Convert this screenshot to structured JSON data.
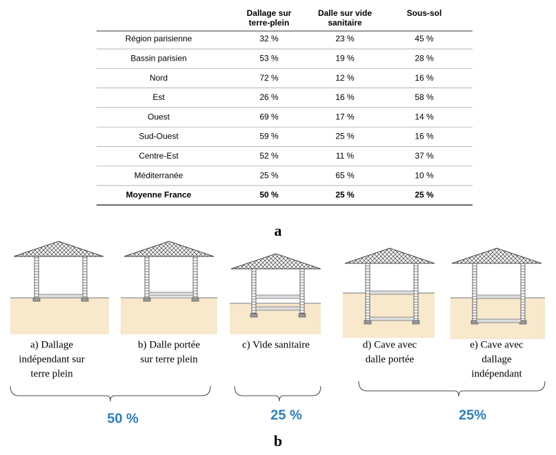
{
  "table": {
    "header": [
      [
        "Dallage sur",
        "terre-plein"
      ],
      [
        "Dalle sur vide",
        "sanitaire"
      ],
      [
        "Sous-sol"
      ]
    ],
    "rows": [
      [
        "Région parisienne",
        "32 %",
        "23 %",
        "45 %"
      ],
      [
        "Bassin parisien",
        "53 %",
        "19 %",
        "28 %"
      ],
      [
        "Nord",
        "72 %",
        "12 %",
        "16 %"
      ],
      [
        "Est",
        "26 %",
        "16 %",
        "58 %"
      ],
      [
        "Ouest",
        "69 %",
        "17 %",
        "14 %"
      ],
      [
        "Sud-Ouest",
        "59 %",
        "25 %",
        "16 %"
      ],
      [
        "Centre-Est",
        "52 %",
        "11 %",
        "37 %"
      ],
      [
        "Méditerranée",
        "25 %",
        "65 %",
        "10 %"
      ],
      [
        "Moyenne France",
        "50 %",
        "25 %",
        "25 %"
      ]
    ]
  },
  "label_a": "a",
  "captions": [
    [
      "a) Dallage",
      "indépendant sur",
      "terre plein"
    ],
    [
      "b) Dalle portée",
      "sur  terre plein"
    ],
    [
      "c) Vide sanitaire"
    ],
    [
      "d) Cave avec",
      "dalle portée"
    ],
    [
      "e) Cave avec",
      "dallage",
      "indépendant"
    ]
  ],
  "groups": [
    "50 %",
    "25 %",
    "25%"
  ],
  "label_b": "b"
}
